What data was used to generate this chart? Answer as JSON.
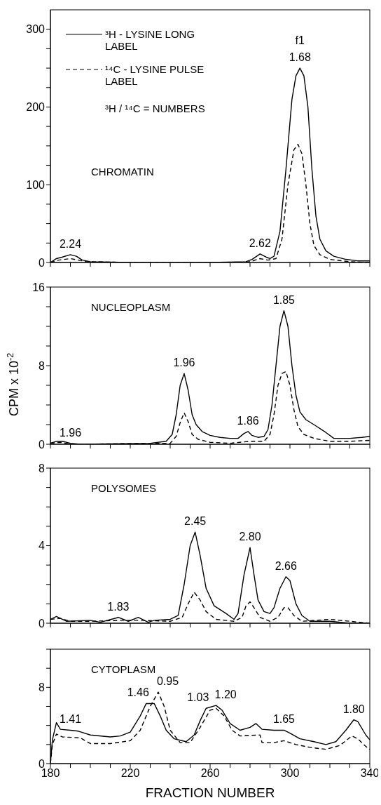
{
  "chart_data": [
    {
      "type": "line",
      "title": "CHROMATIN",
      "legend": "top left",
      "tick_labels": "y",
      "xlim": [
        180,
        340
      ],
      "ylim": [
        0,
        325
      ],
      "xticks": [
        180,
        {
          "value": 190,
          "label": null
        },
        {
          "value": 200,
          "label": null
        },
        {
          "value": 210,
          "label": null
        },
        220,
        {
          "value": 230,
          "label": null
        },
        {
          "value": 240,
          "label": null
        },
        {
          "value": 250,
          "label": null
        },
        260,
        {
          "value": 270,
          "label": null
        },
        {
          "value": 280,
          "label": null
        },
        {
          "value": 290,
          "label": null
        },
        300,
        {
          "value": 310,
          "label": null
        },
        {
          "value": 320,
          "label": null
        },
        {
          "value": 330,
          "label": null
        },
        340
      ],
      "yticks": [
        0,
        {
          "value": 25,
          "label": null
        },
        {
          "value": 50,
          "label": null
        },
        {
          "value": 75,
          "label": null
        },
        100,
        {
          "value": 125,
          "label": null
        },
        {
          "value": 150,
          "label": null
        },
        {
          "value": 175,
          "label": null
        },
        200,
        {
          "value": 225,
          "label": null
        },
        {
          "value": 250,
          "label": null
        },
        {
          "value": 275,
          "label": null
        },
        300
      ],
      "series": [
        {
          "name": "³H - LYSINE LONG LABEL",
          "color": "#000000",
          "line_style": "solid",
          "x": [
            180,
            183,
            186,
            190,
            193,
            196,
            200,
            220,
            260,
            278,
            281,
            285,
            288,
            290,
            292,
            295,
            298,
            301,
            303,
            305,
            307,
            309,
            311,
            313,
            315,
            318,
            322,
            328,
            334,
            340
          ],
          "values": [
            0,
            5,
            7,
            10,
            8,
            3,
            1,
            0,
            0,
            1,
            4,
            11,
            7,
            5,
            8,
            40,
            120,
            210,
            240,
            250,
            240,
            200,
            120,
            60,
            30,
            15,
            8,
            4,
            2,
            2
          ]
        },
        {
          "name": "¹⁴C - LYSINE PULSE LABEL",
          "color": "#000000",
          "line_style": "dashed",
          "x": [
            180,
            184,
            190,
            194,
            198,
            220,
            275,
            280,
            285,
            289,
            293,
            296,
            299,
            302,
            304,
            306,
            308,
            310,
            312,
            315,
            320,
            330,
            340
          ],
          "values": [
            0,
            3,
            5,
            3,
            1,
            0,
            0,
            1,
            5,
            3,
            5,
            30,
            100,
            145,
            152,
            140,
            100,
            50,
            22,
            10,
            4,
            1,
            0
          ]
        }
      ],
      "annotations": [
        "³H / ¹⁴C = NUMBERS",
        {
          "text": "2.24",
          "x": 190,
          "y": 10
        },
        {
          "text": "2.62",
          "x": 285,
          "y": 11
        },
        {
          "text": "1.68",
          "x": 305,
          "y": 250
        },
        {
          "text": "f1",
          "x": 305,
          "y": 250
        }
      ]
    },
    {
      "type": "line",
      "title": "NUCLEOPLASM",
      "ylabel": "CPM x 10$^{-2}$",
      "tick_labels": "y",
      "xlim": [
        180,
        340
      ],
      "ylim": [
        0,
        16
      ],
      "xticks": [
        180,
        {
          "value": 190,
          "label": null
        },
        {
          "value": 200,
          "label": null
        },
        {
          "value": 210,
          "label": null
        },
        220,
        {
          "value": 230,
          "label": null
        },
        {
          "value": 240,
          "label": null
        },
        {
          "value": 250,
          "label": null
        },
        260,
        {
          "value": 270,
          "label": null
        },
        {
          "value": 280,
          "label": null
        },
        {
          "value": 290,
          "label": null
        },
        300,
        {
          "value": 310,
          "label": null
        },
        {
          "value": 320,
          "label": null
        },
        {
          "value": 330,
          "label": null
        },
        340
      ],
      "yticks": [
        0,
        {
          "value": 2,
          "label": null
        },
        {
          "value": 4,
          "label": null
        },
        {
          "value": 6,
          "label": null
        },
        8,
        {
          "value": 10,
          "label": null
        },
        {
          "value": 12,
          "label": null
        },
        {
          "value": 14,
          "label": null
        },
        16
      ],
      "series": [
        {
          "color": "#000000",
          "line_style": "solid",
          "x": [
            180,
            183,
            186,
            190,
            195,
            230,
            238,
            241,
            243,
            245,
            247,
            249,
            251,
            253,
            256,
            260,
            265,
            270,
            274,
            277,
            279,
            281,
            284,
            287,
            289,
            291,
            293,
            295,
            297,
            299,
            301,
            303,
            305,
            308,
            312,
            318,
            322,
            330,
            336,
            340
          ],
          "values": [
            0.1,
            0.3,
            0.3,
            0.1,
            0,
            0.1,
            0.3,
            1,
            3,
            6,
            7.2,
            5.5,
            3,
            2,
            1.3,
            0.9,
            0.7,
            0.6,
            0.6,
            1.1,
            1.3,
            0.9,
            0.7,
            0.8,
            1.5,
            4,
            8,
            12,
            13.6,
            12,
            8,
            5,
            3.3,
            2.5,
            2,
            1.2,
            0.6,
            0.6,
            0.7,
            0.8
          ]
        },
        {
          "color": "#000000",
          "line_style": "dashed",
          "x": [
            180,
            185,
            190,
            240,
            243,
            245,
            247,
            249,
            251,
            254,
            260,
            270,
            280,
            287,
            290,
            292,
            294,
            296,
            298,
            300,
            302,
            304,
            307,
            312,
            320,
            330,
            340
          ],
          "values": [
            0.1,
            0.2,
            0,
            0.1,
            0.8,
            2.2,
            3.2,
            2.3,
            1,
            0.5,
            0.2,
            0.1,
            0.3,
            0.3,
            1,
            3,
            6,
            7.2,
            7.4,
            6,
            3.5,
            1.8,
            1,
            0.6,
            0.3,
            0.3,
            0.4
          ]
        }
      ],
      "annotations": [
        {
          "text": "1.96",
          "x": 190,
          "y": 0.1
        },
        {
          "text": "1.96",
          "x": 247,
          "y": 7.2
        },
        {
          "text": "1.86",
          "x": 279,
          "y": 1.3
        },
        {
          "text": "1.85",
          "x": 297,
          "y": 13.6
        }
      ]
    },
    {
      "type": "line",
      "title": "POLYSOMES",
      "tick_labels": "y",
      "xlim": [
        180,
        340
      ],
      "ylim": [
        0,
        8
      ],
      "xticks": [
        180,
        {
          "value": 190,
          "label": null
        },
        {
          "value": 200,
          "label": null
        },
        {
          "value": 210,
          "label": null
        },
        220,
        {
          "value": 230,
          "label": null
        },
        {
          "value": 240,
          "label": null
        },
        {
          "value": 250,
          "label": null
        },
        260,
        {
          "value": 270,
          "label": null
        },
        {
          "value": 280,
          "label": null
        },
        {
          "value": 290,
          "label": null
        },
        300,
        {
          "value": 310,
          "label": null
        },
        {
          "value": 320,
          "label": null
        },
        {
          "value": 330,
          "label": null
        },
        340
      ],
      "yticks": [
        0,
        {
          "value": 1,
          "label": null
        },
        {
          "value": 2,
          "label": null
        },
        {
          "value": 3,
          "label": null
        },
        4,
        {
          "value": 5,
          "label": null
        },
        {
          "value": 6,
          "label": null
        },
        {
          "value": 7,
          "label": null
        },
        8
      ],
      "series": [
        {
          "color": "#000000",
          "line_style": "solid",
          "x": [
            180,
            183,
            188,
            200,
            205,
            214,
            219,
            224,
            229,
            232,
            240,
            244,
            247,
            250,
            252.5,
            255,
            258,
            262,
            268,
            272,
            274,
            277,
            280,
            282,
            284,
            287,
            290,
            292,
            295,
            298,
            300,
            303,
            306,
            310,
            320,
            330,
            340
          ],
          "values": [
            0.2,
            0.35,
            0.1,
            0.15,
            0.05,
            0.3,
            0.1,
            0.3,
            0.05,
            0.15,
            0.2,
            0.4,
            2,
            4,
            4.7,
            3.5,
            1.8,
            0.9,
            0.5,
            0.2,
            0.5,
            2.5,
            3.9,
            2.5,
            1.2,
            0.6,
            0.5,
            0.8,
            1.8,
            2.4,
            2.2,
            1,
            0.4,
            0.1,
            0.1,
            0,
            0
          ]
        },
        {
          "color": "#000000",
          "line_style": "dashed",
          "x": [
            180,
            185,
            190,
            200,
            215,
            225,
            240,
            246,
            249,
            252,
            255,
            258,
            263,
            272,
            276,
            278,
            280,
            282,
            285,
            290,
            294,
            297,
            299,
            302,
            306,
            320,
            340
          ],
          "values": [
            0.2,
            0.25,
            0.1,
            0.1,
            0.15,
            0.15,
            0.1,
            0.3,
            1,
            1.6,
            1.2,
            0.6,
            0.2,
            0.1,
            0.3,
            0.9,
            1.1,
            0.8,
            0.3,
            0.1,
            0.3,
            0.8,
            0.8,
            0.4,
            0.1,
            0.2,
            0
          ]
        }
      ],
      "annotations": [
        {
          "text": "1.83",
          "x": 214,
          "y": 0.3
        },
        {
          "text": "2.45",
          "x": 252.5,
          "y": 4.7
        },
        {
          "text": "2.80",
          "x": 280,
          "y": 3.9
        },
        {
          "text": "2.66",
          "x": 298,
          "y": 2.4
        }
      ]
    },
    {
      "type": "line",
      "title": "CYTOPLASM",
      "xlabel": "FRACTION NUMBER",
      "xlim": [
        180,
        340
      ],
      "ylim": [
        0,
        12
      ],
      "xticks": [
        180,
        {
          "value": 190,
          "label": null
        },
        {
          "value": 200,
          "label": null
        },
        {
          "value": 210,
          "label": null
        },
        220,
        {
          "value": 230,
          "label": null
        },
        {
          "value": 240,
          "label": null
        },
        {
          "value": 250,
          "label": null
        },
        260,
        {
          "value": 270,
          "label": null
        },
        {
          "value": 280,
          "label": null
        },
        {
          "value": 290,
          "label": null
        },
        300,
        {
          "value": 310,
          "label": null
        },
        {
          "value": 320,
          "label": null
        },
        {
          "value": 330,
          "label": null
        },
        340
      ],
      "yticks": [
        0,
        {
          "value": 2,
          "label": null
        },
        {
          "value": 4,
          "label": null
        },
        {
          "value": 6,
          "label": null
        },
        8,
        {
          "value": 10,
          "label": null
        },
        {
          "value": 12,
          "label": null
        }
      ],
      "series": [
        {
          "color": "#000000",
          "line_style": "solid",
          "x": [
            180,
            181,
            183,
            185,
            190,
            194,
            200,
            210,
            215,
            220,
            225,
            228,
            232,
            235,
            238,
            242,
            248,
            252,
            255,
            258,
            263,
            266,
            270,
            275,
            280,
            283,
            286,
            292,
            297,
            300,
            305,
            312,
            318,
            323,
            328,
            332,
            334,
            338,
            340
          ],
          "values": [
            0,
            2.5,
            4.3,
            3.6,
            3.5,
            3.4,
            3.0,
            2.8,
            2.9,
            3.3,
            5,
            6.3,
            6.3,
            5,
            3.5,
            2.6,
            2.3,
            3,
            4.5,
            5.8,
            6.1,
            5.6,
            4.2,
            3.5,
            3.8,
            4.2,
            3.6,
            3.5,
            3.5,
            3.2,
            2.6,
            2.3,
            2.0,
            2.3,
            3.5,
            4.6,
            4.4,
            3.0,
            2.5
          ]
        },
        {
          "color": "#000000",
          "line_style": "dashed",
          "x": [
            180,
            181,
            183,
            186,
            195,
            200,
            210,
            220,
            225,
            230,
            234,
            237,
            240,
            245,
            250,
            255,
            260,
            263,
            267,
            271,
            275,
            285,
            286,
            292,
            297,
            303,
            310,
            318,
            325,
            331,
            334,
            338,
            340
          ],
          "values": [
            0,
            2,
            3.1,
            2.8,
            2.7,
            2.1,
            2.1,
            2.4,
            3.5,
            6,
            7.5,
            6,
            3.5,
            2.2,
            2.2,
            3.8,
            5.6,
            5.8,
            5,
            3.5,
            2.9,
            3.0,
            2.2,
            2.2,
            2.4,
            2.0,
            1.7,
            1.5,
            1.9,
            2.9,
            2.6,
            1.8,
            1.5
          ]
        }
      ],
      "annotations": [
        {
          "text": "1.41",
          "x": 190,
          "y": 3.5
        },
        {
          "text": "1.46",
          "x": 228,
          "y": 6.3
        },
        {
          "text": "0.95",
          "x": 234,
          "y": 7.5
        },
        {
          "text": "1.03",
          "x": 258,
          "y": 5.8
        },
        {
          "text": "1.20",
          "x": 263,
          "y": 6.1
        },
        {
          "text": "1.65",
          "x": 297,
          "y": 3.5
        },
        {
          "text": "1.80",
          "x": 332,
          "y": 4.6
        }
      ]
    }
  ]
}
